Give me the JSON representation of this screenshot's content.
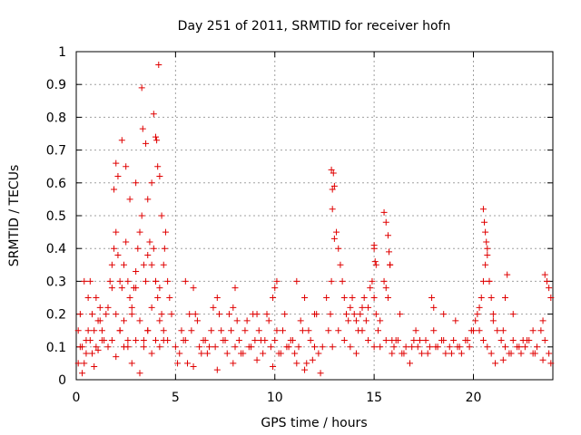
{
  "chart_data": {
    "type": "scatter",
    "title": "Day 251 of 2011, SRMTID for receiver hofn",
    "xlabel": "GPS time / hours",
    "ylabel": "SRMTID / TECUs",
    "xlim": [
      0,
      24
    ],
    "ylim": [
      0,
      1
    ],
    "xticks": [
      0,
      5,
      10,
      15,
      20
    ],
    "xtick_labels": [
      "0",
      "5",
      "10",
      "15",
      "20"
    ],
    "yticks": [
      0,
      0.1,
      0.2,
      0.3,
      0.4,
      0.5,
      0.6,
      0.7,
      0.8,
      0.9,
      1
    ],
    "ytick_labels": [
      "0",
      "0.1",
      "0.2",
      "0.3",
      "0.4",
      "0.5",
      "0.6",
      "0.7",
      "0.8",
      "0.9",
      "1"
    ],
    "grid": true,
    "marker": "+",
    "color": "#e00000",
    "series": [
      {
        "name": "SRMTID",
        "x": [
          0.1,
          0.2,
          0.3,
          0.4,
          0.5,
          0.6,
          0.7,
          0.8,
          0.9,
          1.0,
          1.1,
          1.2,
          1.3,
          1.5,
          1.7,
          1.8,
          1.9,
          2.0,
          2.1,
          2.2,
          2.3,
          2.4,
          2.5,
          2.6,
          2.7,
          2.8,
          2.9,
          3.0,
          3.1,
          3.2,
          3.3,
          3.4,
          3.5,
          3.6,
          3.7,
          3.8,
          3.9,
          4.0,
          4.1,
          4.2,
          4.3,
          4.4,
          4.5,
          4.6,
          4.7,
          4.8,
          0.1,
          0.3,
          0.5,
          0.7,
          0.9,
          1.1,
          1.3,
          1.6,
          1.8,
          2.0,
          2.2,
          2.4,
          2.6,
          2.8,
          3.0,
          3.2,
          3.4,
          3.6,
          3.8,
          4.0,
          4.2,
          4.4,
          4.6,
          0.2,
          0.4,
          0.6,
          0.8,
          1.0,
          1.2,
          1.4,
          1.6,
          1.8,
          2.0,
          2.2,
          2.4,
          2.6,
          2.8,
          3.0,
          3.2,
          3.4,
          3.6,
          3.8,
          4.0,
          4.2,
          4.4,
          1.9,
          2.0,
          2.1,
          2.3,
          2.5,
          2.7,
          3.0,
          3.3,
          3.35,
          3.5,
          3.6,
          3.8,
          3.9,
          4.0,
          4.05,
          4.1,
          4.15,
          4.2,
          4.3,
          4.45,
          5.0,
          5.2,
          5.4,
          5.6,
          5.8,
          6.0,
          6.2,
          6.4,
          6.6,
          6.8,
          7.0,
          7.2,
          7.4,
          7.6,
          7.8,
          8.0,
          8.2,
          8.4,
          8.6,
          8.8,
          9.0,
          9.2,
          9.4,
          9.6,
          9.8,
          10.0,
          10.2,
          10.4,
          10.6,
          10.8,
          11.0,
          11.2,
          11.4,
          11.6,
          11.8,
          12.0,
          12.2,
          12.4,
          5.1,
          5.5,
          5.9,
          6.3,
          6.7,
          7.1,
          7.5,
          7.9,
          8.3,
          8.7,
          9.1,
          9.5,
          9.9,
          10.3,
          10.7,
          11.1,
          11.5,
          11.9,
          12.3,
          5.3,
          5.7,
          6.1,
          6.5,
          6.9,
          7.3,
          7.7,
          8.1,
          8.5,
          8.9,
          9.3,
          9.7,
          10.1,
          10.5,
          10.9,
          11.3,
          11.7,
          12.1,
          5.5,
          5.9,
          7.1,
          7.9,
          8.0,
          9.1,
          9.9,
          10.0,
          10.1,
          11.1,
          11.5,
          12.0,
          12.6,
          12.7,
          12.8,
          12.85,
          12.9,
          12.95,
          13.0,
          13.1,
          13.2,
          13.3,
          13.4,
          13.5,
          13.6,
          13.7,
          13.8,
          13.9,
          14.0,
          14.1,
          14.2,
          14.3,
          14.4,
          14.5,
          14.6,
          14.7,
          14.8,
          14.9,
          15.0,
          15.1,
          15.2,
          15.3,
          15.5,
          15.6,
          15.7,
          15.8,
          15.9,
          12.9,
          13.2,
          13.5,
          13.8,
          14.1,
          14.4,
          14.7,
          15.0,
          15.3,
          15.6,
          15.9,
          12.85,
          12.9,
          13.0,
          15.0,
          15.1,
          15.5,
          15.6,
          15.7,
          15.75,
          15.8,
          15.0,
          15.05,
          16.0,
          16.2,
          16.4,
          16.6,
          16.8,
          17.0,
          17.2,
          17.4,
          17.6,
          17.8,
          18.0,
          18.2,
          18.4,
          18.6,
          18.8,
          19.0,
          19.2,
          19.4,
          19.6,
          19.8,
          20.0,
          16.1,
          16.5,
          16.9,
          17.3,
          17.7,
          18.1,
          18.5,
          18.9,
          19.3,
          19.7,
          17.9,
          18.0,
          18.5,
          16.3,
          17.1,
          19.1,
          19.9,
          20.1,
          20.2,
          20.3,
          20.4,
          20.5,
          20.6,
          20.7,
          20.8,
          20.9,
          21.0,
          21.2,
          21.4,
          21.6,
          21.8,
          22.0,
          22.2,
          22.4,
          22.6,
          22.8,
          23.0,
          23.2,
          23.4,
          23.6,
          23.8,
          20.3,
          20.5,
          20.7,
          20.9,
          21.1,
          21.5,
          21.9,
          22.3,
          22.7,
          23.1,
          23.5,
          23.9,
          20.5,
          20.55,
          20.6,
          20.65,
          20.7,
          20.8,
          21.7,
          21.6,
          23.6,
          23.7,
          23.8,
          23.9,
          21.0,
          21.5,
          22.0,
          22.5,
          23.0,
          23.5
        ],
        "y": [
          0.15,
          0.2,
          0.1,
          0.05,
          0.12,
          0.25,
          0.3,
          0.08,
          0.15,
          0.1,
          0.18,
          0.22,
          0.12,
          0.2,
          0.3,
          0.35,
          0.4,
          0.45,
          0.38,
          0.3,
          0.28,
          0.35,
          0.42,
          0.3,
          0.25,
          0.2,
          0.28,
          0.33,
          0.4,
          0.45,
          0.5,
          0.35,
          0.3,
          0.38,
          0.42,
          0.35,
          0.4,
          0.3,
          0.25,
          0.28,
          0.2,
          0.35,
          0.45,
          0.3,
          0.25,
          0.2,
          0.05,
          0.02,
          0.08,
          0.12,
          0.04,
          0.09,
          0.15,
          0.1,
          0.12,
          0.07,
          0.15,
          0.18,
          0.1,
          0.05,
          0.12,
          0.02,
          0.1,
          0.15,
          0.08,
          0.12,
          0.1,
          0.15,
          0.12,
          0.1,
          0.3,
          0.15,
          0.2,
          0.25,
          0.18,
          0.12,
          0.22,
          0.28,
          0.2,
          0.15,
          0.1,
          0.12,
          0.22,
          0.28,
          0.18,
          0.12,
          0.15,
          0.22,
          0.3,
          0.18,
          0.12,
          0.58,
          0.66,
          0.62,
          0.73,
          0.65,
          0.55,
          0.6,
          0.89,
          0.765,
          0.72,
          0.55,
          0.6,
          0.81,
          0.74,
          0.73,
          0.65,
          0.96,
          0.62,
          0.5,
          0.4,
          0.1,
          0.08,
          0.12,
          0.05,
          0.15,
          0.2,
          0.1,
          0.12,
          0.08,
          0.15,
          0.1,
          0.2,
          0.12,
          0.08,
          0.15,
          0.1,
          0.12,
          0.08,
          0.18,
          0.1,
          0.12,
          0.15,
          0.08,
          0.2,
          0.1,
          0.12,
          0.08,
          0.15,
          0.1,
          0.12,
          0.08,
          0.1,
          0.15,
          0.05,
          0.12,
          0.1,
          0.08,
          0.1,
          0.05,
          0.12,
          0.04,
          0.08,
          0.1,
          0.03,
          0.12,
          0.05,
          0.08,
          0.1,
          0.06,
          0.12,
          0.04,
          0.08,
          0.1,
          0.05,
          0.03,
          0.06,
          0.02,
          0.15,
          0.2,
          0.18,
          0.12,
          0.22,
          0.15,
          0.2,
          0.18,
          0.15,
          0.2,
          0.12,
          0.18,
          0.15,
          0.2,
          0.12,
          0.18,
          0.15,
          0.2,
          0.3,
          0.28,
          0.25,
          0.22,
          0.28,
          0.2,
          0.25,
          0.28,
          0.3,
          0.3,
          0.25,
          0.2,
          0.25,
          0.15,
          0.2,
          0.3,
          0.52,
          0.63,
          0.59,
          0.45,
          0.4,
          0.35,
          0.3,
          0.25,
          0.2,
          0.18,
          0.22,
          0.25,
          0.2,
          0.18,
          0.15,
          0.2,
          0.22,
          0.25,
          0.18,
          0.22,
          0.28,
          0.3,
          0.25,
          0.2,
          0.15,
          0.18,
          0.3,
          0.28,
          0.25,
          0.35,
          0.12,
          0.1,
          0.15,
          0.12,
          0.1,
          0.08,
          0.15,
          0.12,
          0.1,
          0.1,
          0.12,
          0.08,
          0.64,
          0.58,
          0.43,
          0.41,
          0.35,
          0.51,
          0.48,
          0.44,
          0.39,
          0.35,
          0.4,
          0.36,
          0.1,
          0.12,
          0.08,
          0.1,
          0.05,
          0.12,
          0.1,
          0.08,
          0.12,
          0.1,
          0.15,
          0.1,
          0.12,
          0.08,
          0.1,
          0.12,
          0.1,
          0.08,
          0.12,
          0.1,
          0.15,
          0.12,
          0.08,
          0.1,
          0.12,
          0.08,
          0.1,
          0.12,
          0.08,
          0.1,
          0.12,
          0.25,
          0.22,
          0.2,
          0.2,
          0.15,
          0.18,
          0.15,
          0.18,
          0.2,
          0.22,
          0.25,
          0.3,
          0.35,
          0.4,
          0.3,
          0.25,
          0.2,
          0.15,
          0.12,
          0.1,
          0.08,
          0.12,
          0.1,
          0.08,
          0.1,
          0.12,
          0.08,
          0.1,
          0.15,
          0.12,
          0.08,
          0.15,
          0.12,
          0.1,
          0.08,
          0.05,
          0.06,
          0.08,
          0.1,
          0.12,
          0.08,
          0.06,
          0.05,
          0.52,
          0.48,
          0.45,
          0.42,
          0.38,
          0.3,
          0.32,
          0.25,
          0.32,
          0.3,
          0.28,
          0.25,
          0.18,
          0.15,
          0.2,
          0.12,
          0.15,
          0.18
        ]
      }
    ]
  }
}
